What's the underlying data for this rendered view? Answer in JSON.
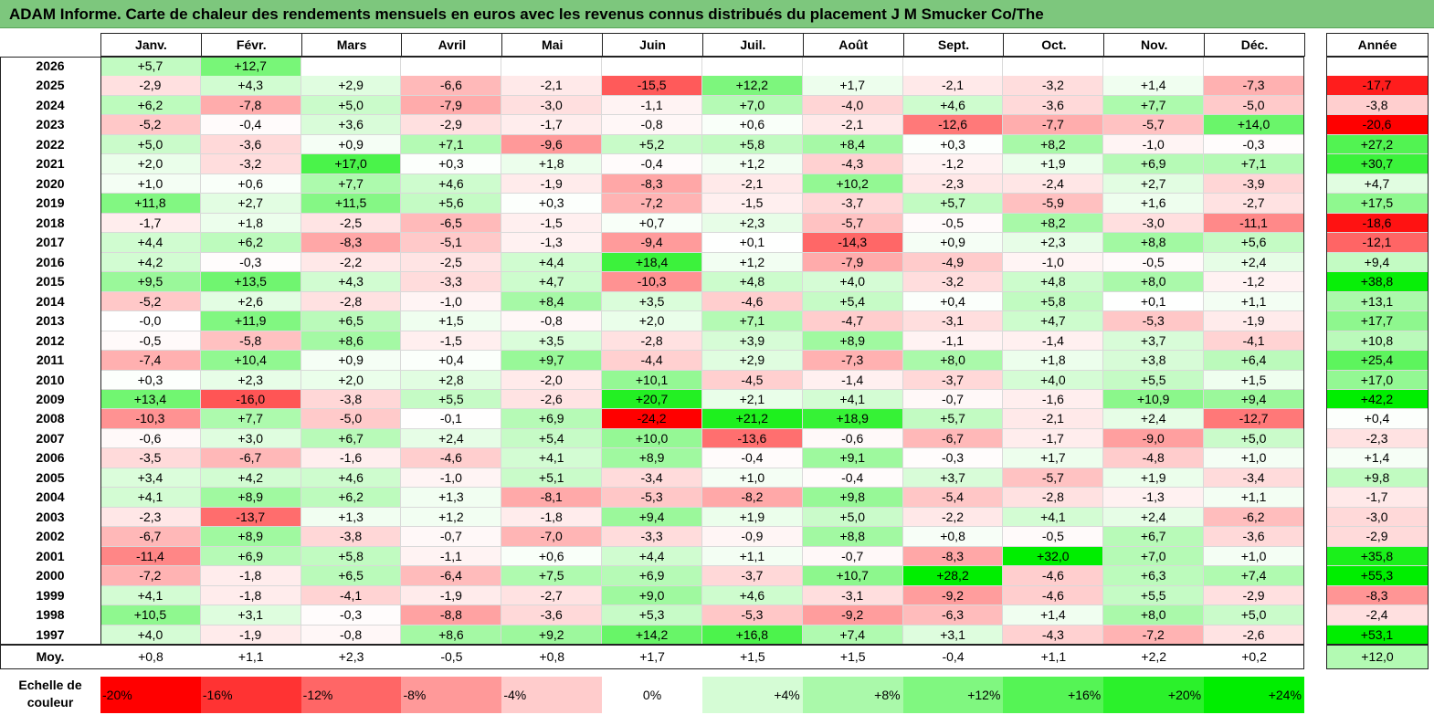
{
  "title": "ADAM Informe. Carte de chaleur des rendements mensuels en euros avec les revenus connus distribués du placement J M Smucker Co/The",
  "chart_data": {
    "type": "heatmap",
    "months": [
      "Janv.",
      "Févr.",
      "Mars",
      "Avril",
      "Mai",
      "Juin",
      "Juil.",
      "Août",
      "Sept.",
      "Oct.",
      "Nov.",
      "Déc."
    ],
    "annual_label": "Année",
    "rows": [
      {
        "year": "2026",
        "values": [
          "+5,7",
          "+12,7",
          "",
          "",
          "",
          "",
          "",
          "",
          "",
          "",
          "",
          ""
        ],
        "annual": ""
      },
      {
        "year": "2025",
        "values": [
          "-2,9",
          "+4,3",
          "+2,9",
          "-6,6",
          "-2,1",
          "-15,5",
          "+12,2",
          "+1,7",
          "-2,1",
          "-3,2",
          "+1,4",
          "-7,3"
        ],
        "annual": "-17,7"
      },
      {
        "year": "2024",
        "values": [
          "+6,2",
          "-7,8",
          "+5,0",
          "-7,9",
          "-3,0",
          "-1,1",
          "+7,0",
          "-4,0",
          "+4,6",
          "-3,6",
          "+7,7",
          "-5,0"
        ],
        "annual": "-3,8"
      },
      {
        "year": "2023",
        "values": [
          "-5,2",
          "-0,4",
          "+3,6",
          "-2,9",
          "-1,7",
          "-0,8",
          "+0,6",
          "-2,1",
          "-12,6",
          "-7,7",
          "-5,7",
          "+14,0"
        ],
        "annual": "-20,6"
      },
      {
        "year": "2022",
        "values": [
          "+5,0",
          "-3,6",
          "+0,9",
          "+7,1",
          "-9,6",
          "+5,2",
          "+5,8",
          "+8,4",
          "+0,3",
          "+8,2",
          "-1,0",
          "-0,3"
        ],
        "annual": "+27,2"
      },
      {
        "year": "2021",
        "values": [
          "+2,0",
          "-3,2",
          "+17,0",
          "+0,3",
          "+1,8",
          "-0,4",
          "+1,2",
          "-4,3",
          "-1,2",
          "+1,9",
          "+6,9",
          "+7,1"
        ],
        "annual": "+30,7"
      },
      {
        "year": "2020",
        "values": [
          "+1,0",
          "+0,6",
          "+7,7",
          "+4,6",
          "-1,9",
          "-8,3",
          "-2,1",
          "+10,2",
          "-2,3",
          "-2,4",
          "+2,7",
          "-3,9"
        ],
        "annual": "+4,7"
      },
      {
        "year": "2019",
        "values": [
          "+11,8",
          "+2,7",
          "+11,5",
          "+5,6",
          "+0,3",
          "-7,2",
          "-1,5",
          "-3,7",
          "+5,7",
          "-5,9",
          "+1,6",
          "-2,7"
        ],
        "annual": "+17,5"
      },
      {
        "year": "2018",
        "values": [
          "-1,7",
          "+1,8",
          "-2,5",
          "-6,5",
          "-1,5",
          "+0,7",
          "+2,3",
          "-5,7",
          "-0,5",
          "+8,2",
          "-3,0",
          "-11,1"
        ],
        "annual": "-18,6"
      },
      {
        "year": "2017",
        "values": [
          "+4,4",
          "+6,2",
          "-8,3",
          "-5,1",
          "-1,3",
          "-9,4",
          "+0,1",
          "-14,3",
          "+0,9",
          "+2,3",
          "+8,8",
          "+5,6"
        ],
        "annual": "-12,1"
      },
      {
        "year": "2016",
        "values": [
          "+4,2",
          "-0,3",
          "-2,2",
          "-2,5",
          "+4,4",
          "+18,4",
          "+1,2",
          "-7,9",
          "-4,9",
          "-1,0",
          "-0,5",
          "+2,4"
        ],
        "annual": "+9,4"
      },
      {
        "year": "2015",
        "values": [
          "+9,5",
          "+13,5",
          "+4,3",
          "-3,3",
          "+4,7",
          "-10,3",
          "+4,8",
          "+4,0",
          "-3,2",
          "+4,8",
          "+8,0",
          "-1,2"
        ],
        "annual": "+38,8"
      },
      {
        "year": "2014",
        "values": [
          "-5,2",
          "+2,6",
          "-2,8",
          "-1,0",
          "+8,4",
          "+3,5",
          "-4,6",
          "+5,4",
          "+0,4",
          "+5,8",
          "+0,1",
          "+1,1"
        ],
        "annual": "+13,1"
      },
      {
        "year": "2013",
        "values": [
          "-0,0",
          "+11,9",
          "+6,5",
          "+1,5",
          "-0,8",
          "+2,0",
          "+7,1",
          "-4,7",
          "-3,1",
          "+4,7",
          "-5,3",
          "-1,9"
        ],
        "annual": "+17,7"
      },
      {
        "year": "2012",
        "values": [
          "-0,5",
          "-5,8",
          "+8,6",
          "-1,5",
          "+3,5",
          "-2,8",
          "+3,9",
          "+8,9",
          "-1,1",
          "-1,4",
          "+3,7",
          "-4,1"
        ],
        "annual": "+10,8"
      },
      {
        "year": "2011",
        "values": [
          "-7,4",
          "+10,4",
          "+0,9",
          "+0,4",
          "+9,7",
          "-4,4",
          "+2,9",
          "-7,3",
          "+8,0",
          "+1,8",
          "+3,8",
          "+6,4"
        ],
        "annual": "+25,4"
      },
      {
        "year": "2010",
        "values": [
          "+0,3",
          "+2,3",
          "+2,0",
          "+2,8",
          "-2,0",
          "+10,1",
          "-4,5",
          "-1,4",
          "-3,7",
          "+4,0",
          "+5,5",
          "+1,5"
        ],
        "annual": "+17,0"
      },
      {
        "year": "2009",
        "values": [
          "+13,4",
          "-16,0",
          "-3,8",
          "+5,5",
          "-2,6",
          "+20,7",
          "+2,1",
          "+4,1",
          "-0,7",
          "-1,6",
          "+10,9",
          "+9,4"
        ],
        "annual": "+42,2"
      },
      {
        "year": "2008",
        "values": [
          "-10,3",
          "+7,7",
          "-5,0",
          "-0,1",
          "+6,9",
          "-24,2",
          "+21,2",
          "+18,9",
          "+5,7",
          "-2,1",
          "+2,4",
          "-12,7"
        ],
        "annual": "+0,4"
      },
      {
        "year": "2007",
        "values": [
          "-0,6",
          "+3,0",
          "+6,7",
          "+2,4",
          "+5,4",
          "+10,0",
          "-13,6",
          "-0,6",
          "-6,7",
          "-1,7",
          "-9,0",
          "+5,0"
        ],
        "annual": "-2,3"
      },
      {
        "year": "2006",
        "values": [
          "-3,5",
          "-6,7",
          "-1,6",
          "-4,6",
          "+4,1",
          "+8,9",
          "-0,4",
          "+9,1",
          "-0,3",
          "+1,7",
          "-4,8",
          "+1,0"
        ],
        "annual": "+1,4"
      },
      {
        "year": "2005",
        "values": [
          "+3,4",
          "+4,2",
          "+4,6",
          "-1,0",
          "+5,1",
          "-3,4",
          "+1,0",
          "-0,4",
          "+3,7",
          "-5,7",
          "+1,9",
          "-3,4"
        ],
        "annual": "+9,8"
      },
      {
        "year": "2004",
        "values": [
          "+4,1",
          "+8,9",
          "+6,2",
          "+1,3",
          "-8,1",
          "-5,3",
          "-8,2",
          "+9,8",
          "-5,4",
          "-2,8",
          "-1,3",
          "+1,1"
        ],
        "annual": "-1,7"
      },
      {
        "year": "2003",
        "values": [
          "-2,3",
          "-13,7",
          "+1,3",
          "+1,2",
          "-1,8",
          "+9,4",
          "+1,9",
          "+5,0",
          "-2,2",
          "+4,1",
          "+2,4",
          "-6,2"
        ],
        "annual": "-3,0"
      },
      {
        "year": "2002",
        "values": [
          "-6,7",
          "+8,9",
          "-3,8",
          "-0,7",
          "-7,0",
          "-3,3",
          "-0,9",
          "+8,8",
          "+0,8",
          "-0,5",
          "+6,7",
          "-3,6"
        ],
        "annual": "-2,9"
      },
      {
        "year": "2001",
        "values": [
          "-11,4",
          "+6,9",
          "+5,8",
          "-1,1",
          "+0,6",
          "+4,4",
          "+1,1",
          "-0,7",
          "-8,3",
          "+32,0",
          "+7,0",
          "+1,0"
        ],
        "annual": "+35,8"
      },
      {
        "year": "2000",
        "values": [
          "-7,2",
          "-1,8",
          "+6,5",
          "-6,4",
          "+7,5",
          "+6,9",
          "-3,7",
          "+10,7",
          "+28,2",
          "-4,6",
          "+6,3",
          "+7,4"
        ],
        "annual": "+55,3"
      },
      {
        "year": "1999",
        "values": [
          "+4,1",
          "-1,8",
          "-4,1",
          "-1,9",
          "-2,7",
          "+9,0",
          "+4,6",
          "-3,1",
          "-9,2",
          "-4,6",
          "+5,5",
          "-2,9"
        ],
        "annual": "-8,3"
      },
      {
        "year": "1998",
        "values": [
          "+10,5",
          "+3,1",
          "-0,3",
          "-8,8",
          "-3,6",
          "+5,3",
          "-5,3",
          "-9,2",
          "-6,3",
          "+1,4",
          "+8,0",
          "+5,0"
        ],
        "annual": "-2,4"
      },
      {
        "year": "1997",
        "values": [
          "+4,0",
          "-1,9",
          "-0,8",
          "+8,6",
          "+9,2",
          "+14,2",
          "+16,8",
          "+7,4",
          "+3,1",
          "-4,3",
          "-7,2",
          "-2,6"
        ],
        "annual": "+53,1"
      }
    ],
    "average": {
      "label": "Moy.",
      "values": [
        "+0,8",
        "+1,1",
        "+2,3",
        "-0,5",
        "+0,8",
        "+1,7",
        "+1,5",
        "+1,5",
        "-0,4",
        "+1,1",
        "+2,2",
        "+0,2"
      ],
      "annual": "+12,0"
    },
    "scale": {
      "label": "Echelle de couleur",
      "steps": [
        {
          "label": "-20%",
          "value": -20
        },
        {
          "label": "-16%",
          "value": -16
        },
        {
          "label": "-12%",
          "value": -12
        },
        {
          "label": "-8%",
          "value": -8
        },
        {
          "label": "-4%",
          "value": -4
        },
        {
          "label": "0%",
          "value": 0
        },
        {
          "label": "+4%",
          "value": 4
        },
        {
          "label": "+8%",
          "value": 8
        },
        {
          "label": "+12%",
          "value": 12
        },
        {
          "label": "+16%",
          "value": 16
        },
        {
          "label": "+20%",
          "value": 20
        },
        {
          "label": "+24%",
          "value": 24
        }
      ]
    },
    "colors": {
      "negative_max": "#ff0000",
      "neutral": "#ffffff",
      "positive_max": "#00ee00",
      "title_bar": "#7dc77d"
    }
  }
}
